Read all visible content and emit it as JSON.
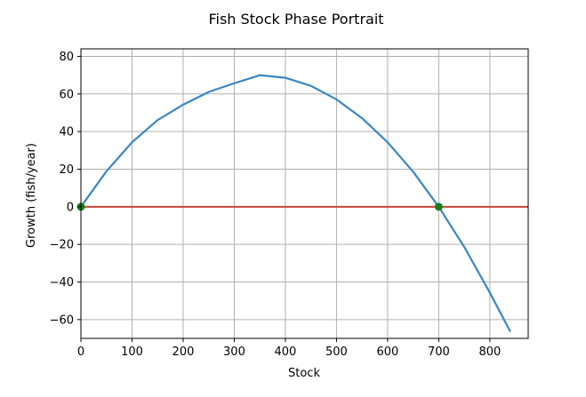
{
  "chart_data": {
    "type": "line",
    "title": "Fish Stock Phase Portrait",
    "xlabel": "Stock",
    "ylabel": "Growth (fish/year)",
    "xlim": [
      0,
      875
    ],
    "ylim": [
      -70,
      84
    ],
    "xticks": [
      0,
      100,
      200,
      300,
      400,
      500,
      600,
      700,
      800
    ],
    "yticks": [
      -60,
      -40,
      -20,
      0,
      20,
      40,
      60,
      80
    ],
    "grid": true,
    "series": [
      {
        "kind": "growth-curve",
        "color": "#3a87c4",
        "x": [
          0,
          50,
          100,
          150,
          200,
          250,
          300,
          350,
          400,
          450,
          500,
          550,
          600,
          650,
          700,
          750,
          800,
          840
        ],
        "y": [
          0,
          18.9,
          34.3,
          46.1,
          54.3,
          61.1,
          65.7,
          70,
          68.6,
          64.3,
          57.1,
          47.1,
          34.3,
          18.6,
          0,
          -21.4,
          -45.7,
          -66.4
        ]
      },
      {
        "kind": "zero-line",
        "color": "#c8443a",
        "x": [
          0,
          875
        ],
        "y": [
          0,
          0
        ]
      }
    ],
    "equilibria": {
      "color": "#1a7f1a",
      "points": [
        {
          "x": 0,
          "y": 0
        },
        {
          "x": 700,
          "y": 0
        }
      ]
    }
  }
}
